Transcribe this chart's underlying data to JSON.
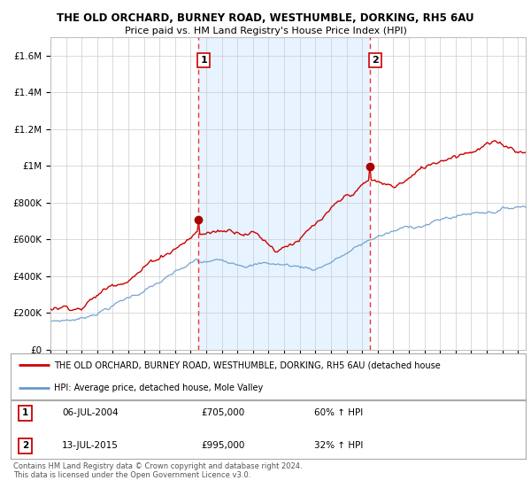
{
  "title": "THE OLD ORCHARD, BURNEY ROAD, WESTHUMBLE, DORKING, RH5 6AU",
  "subtitle": "Price paid vs. HM Land Registry's House Price Index (HPI)",
  "ylim": [
    0,
    1700000
  ],
  "yticks": [
    0,
    200000,
    400000,
    600000,
    800000,
    1000000,
    1200000,
    1400000,
    1600000
  ],
  "ytick_labels": [
    "£0",
    "£200K",
    "£400K",
    "£600K",
    "£800K",
    "£1M",
    "£1.2M",
    "£1.4M",
    "£1.6M"
  ],
  "sale1_date": 2004.51,
  "sale1_price": 705000,
  "sale1_label": "1",
  "sale2_date": 2015.53,
  "sale2_price": 995000,
  "sale2_label": "2",
  "red_line_color": "#cc0000",
  "blue_line_color": "#6699cc",
  "dashed_line_color": "#ee3333",
  "background_color": "#ffffff",
  "grid_color": "#cccccc",
  "shading_color": "#ddeeff",
  "legend_line1": "THE OLD ORCHARD, BURNEY ROAD, WESTHUMBLE, DORKING, RH5 6AU (detached house",
  "legend_line2": "HPI: Average price, detached house, Mole Valley",
  "table_row1": [
    "1",
    "06-JUL-2004",
    "£705,000",
    "60% ↑ HPI"
  ],
  "table_row2": [
    "2",
    "13-JUL-2015",
    "£995,000",
    "32% ↑ HPI"
  ],
  "footer": "Contains HM Land Registry data © Crown copyright and database right 2024.\nThis data is licensed under the Open Government Licence v3.0.",
  "xstart": 1995,
  "xend": 2025.5
}
